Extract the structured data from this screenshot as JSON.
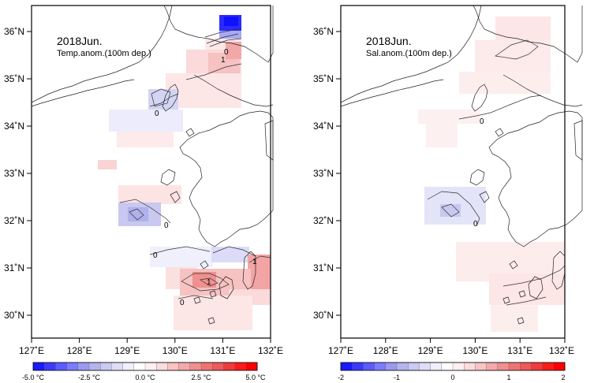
{
  "left_map": {
    "title": "2018Jun.",
    "subtitle": "Temp.anom.(100m dep.)",
    "contour_labels": [
      "0",
      "0",
      "0",
      "1",
      "1",
      "0",
      "1",
      "0"
    ],
    "colorbar_ticks": [
      "-5.0 °C",
      "-2.5 °C",
      "0.0 °C",
      "2.5 °C",
      "5.0 °C"
    ]
  },
  "right_map": {
    "title": "2018Jun.",
    "subtitle": "Sal.anom.(100m dep.)",
    "contour_labels": [
      "0",
      "0"
    ],
    "colorbar_ticks": [
      "-2",
      "-1",
      "0",
      "1",
      "2"
    ]
  },
  "x_ticks": [
    "127˚E",
    "128˚E",
    "129˚E",
    "130˚E",
    "131˚E",
    "132˚E"
  ],
  "y_ticks": [
    "36˚N",
    "35˚N",
    "34˚N",
    "33˚N",
    "32˚N",
    "31˚N",
    "30˚N"
  ],
  "colorbar_colors": [
    "#1a1aff",
    "#3a3aff",
    "#5c5cff",
    "#7c7cff",
    "#9a9aee",
    "#b4b4ee",
    "#cacaf4",
    "#dedef8",
    "#f0f0ff",
    "#ffffff",
    "#fff0f0",
    "#fcdcdc",
    "#f8c4c4",
    "#f4aaaa",
    "#f09090",
    "#ee7474",
    "#ee5a5a",
    "#f03c3c",
    "#ff1a1a",
    "#ff0000"
  ]
}
